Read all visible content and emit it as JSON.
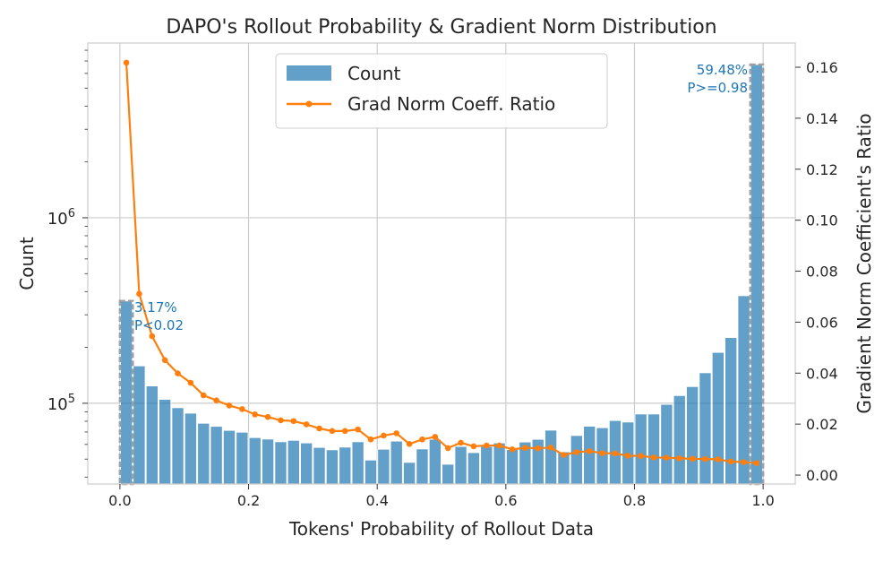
{
  "chart_data": {
    "type": "bar+line",
    "title": "DAPO's Rollout Probability & Gradient Norm Distribution",
    "xlabel": "Tokens' Probability of Rollout Data",
    "ylabel_left": "Count",
    "ylabel_right": "Gradient Norm Coefficient's Ratio",
    "xlim": [
      -0.05,
      1.05
    ],
    "ylim_left": [
      36700,
      8750000
    ],
    "ylim_right": [
      -0.0035,
      0.1695
    ],
    "left_scale": "log",
    "x_ticks": [
      "0.0",
      "0.2",
      "0.4",
      "0.6",
      "0.8",
      "1.0"
    ],
    "left_ticks": [
      {
        "base": "10",
        "exp": "5",
        "value": 100000
      },
      {
        "base": "10",
        "exp": "6",
        "value": 1000000
      }
    ],
    "right_ticks": [
      "0.00",
      "0.02",
      "0.04",
      "0.06",
      "0.08",
      "0.10",
      "0.12",
      "0.14",
      "0.16"
    ],
    "grid": true,
    "legend_placement": "top-center",
    "bin_width": 0.02,
    "x": [
      0.01,
      0.03,
      0.05,
      0.07,
      0.09,
      0.11,
      0.13,
      0.15,
      0.17,
      0.19,
      0.21,
      0.23,
      0.25,
      0.27,
      0.29,
      0.31,
      0.33,
      0.35,
      0.37,
      0.39,
      0.41,
      0.43,
      0.45,
      0.47,
      0.49,
      0.51,
      0.53,
      0.55,
      0.57,
      0.59,
      0.61,
      0.63,
      0.65,
      0.67,
      0.69,
      0.71,
      0.73,
      0.75,
      0.77,
      0.79,
      0.81,
      0.83,
      0.85,
      0.87,
      0.89,
      0.91,
      0.93,
      0.95,
      0.97,
      0.99
    ],
    "series": [
      {
        "name": "Count",
        "type": "bar",
        "axis": "left",
        "color": "#1f77b4",
        "values": [
          356000,
          159000,
          124000,
          105000,
          94600,
          88400,
          78000,
          75100,
          71400,
          69800,
          65300,
          64100,
          62000,
          63100,
          61100,
          57800,
          56100,
          58000,
          62000,
          49400,
          56500,
          62500,
          48000,
          56700,
          63900,
          46900,
          58500,
          54200,
          58500,
          61100,
          56300,
          61800,
          63900,
          71600,
          54700,
          67000,
          75200,
          73800,
          80700,
          79200,
          87500,
          87500,
          98600,
          110000,
          123000,
          146000,
          188000,
          226000,
          380000,
          6700000
        ]
      },
      {
        "name": "Grad Norm Coeff. Ratio",
        "type": "line",
        "axis": "right",
        "color": "#ff7f0e",
        "values": [
          0.1618,
          0.0711,
          0.0545,
          0.0451,
          0.0399,
          0.0362,
          0.0313,
          0.0293,
          0.0273,
          0.0259,
          0.0238,
          0.0228,
          0.0215,
          0.0212,
          0.0199,
          0.0183,
          0.0173,
          0.0173,
          0.0179,
          0.014,
          0.0155,
          0.0164,
          0.0122,
          0.014,
          0.015,
          0.0106,
          0.0127,
          0.0113,
          0.0116,
          0.0116,
          0.0101,
          0.0107,
          0.0105,
          0.0108,
          0.0079,
          0.009,
          0.0094,
          0.0086,
          0.0085,
          0.0076,
          0.0075,
          0.0069,
          0.0068,
          0.0066,
          0.0064,
          0.0063,
          0.0062,
          0.0053,
          0.0051,
          0.0047
        ]
      }
    ],
    "annotations": [
      {
        "line1": "3.17%",
        "line2": "P<0.02",
        "color": "#1f77b4"
      },
      {
        "line1": "59.48%",
        "line2": "P>=0.98",
        "color": "#1f77b4"
      }
    ]
  }
}
